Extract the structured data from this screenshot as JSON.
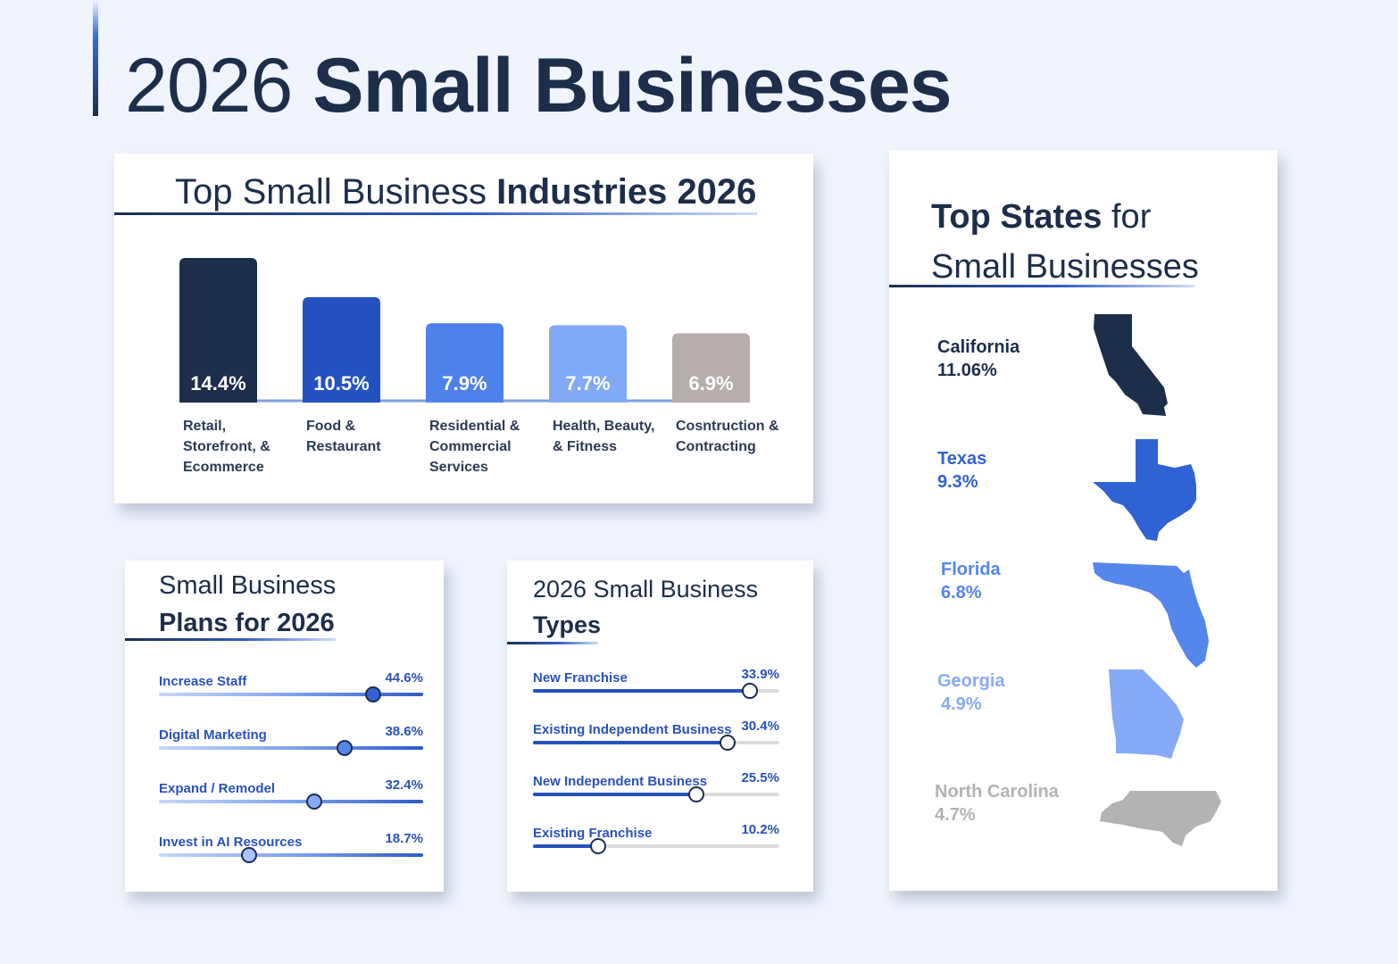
{
  "page": {
    "title_light": "2026",
    "title_bold": "Small Businesses"
  },
  "industries": {
    "title_light": "Top Small Business",
    "title_bold": "Industries 2026"
  },
  "plans": {
    "title_line1": "Small Business",
    "title_line2": "Plans for 2026",
    "items": [
      {
        "label": "Increase Staff",
        "value": "44.6%"
      },
      {
        "label": "Digital Marketing",
        "value": "38.6%"
      },
      {
        "label": "Expand / Remodel",
        "value": "32.4%"
      },
      {
        "label": "Invest in AI Resources",
        "value": "18.7%"
      }
    ]
  },
  "types": {
    "title_line1": "2026 Small Business",
    "title_line2": "Types",
    "items": [
      {
        "label": "New Franchise",
        "value": "33.9%"
      },
      {
        "label": "Existing Independent Business",
        "value": "30.4%"
      },
      {
        "label": "New Independent Business",
        "value": "25.5%"
      },
      {
        "label": "Existing Franchise",
        "value": "10.2%"
      }
    ]
  },
  "states": {
    "title_bold": "Top States",
    "title_light": "for",
    "title_line2": "Small Businesses",
    "items": [
      {
        "name": "California",
        "value": "11.06%",
        "color": "#1c2e4a"
      },
      {
        "name": "Texas",
        "value": "9.3%",
        "color": "#2f62d3"
      },
      {
        "name": "Florida",
        "value": "6.8%",
        "color": "#5586ec"
      },
      {
        "name": "Georgia",
        "value": "4.9%",
        "color": "#86aaf6"
      },
      {
        "name": "North Carolina",
        "value": "4.7%",
        "color": "#b3b3b3"
      }
    ]
  },
  "chart_data": [
    {
      "type": "bar",
      "title": "Top Small Business Industries 2026",
      "categories": [
        "Retail,\nStorefront, &\nEcommerce",
        "Food &\nRestaurant",
        "Residential &\nCommercial\nServices",
        "Health, Beauty,\n& Fitness",
        "Cosntruction &\nContracting"
      ],
      "values": [
        14.4,
        10.5,
        7.9,
        7.7,
        6.9
      ],
      "value_labels": [
        "14.4%",
        "10.5%",
        "7.9%",
        "7.7%",
        "6.9%"
      ],
      "colors": [
        "#1c2e4a",
        "#2352c0",
        "#4f82e8",
        "#82a9f4",
        "#b6adac"
      ],
      "ylim": [
        0,
        16
      ],
      "grid": false
    },
    {
      "type": "bar",
      "title": "Small Business Plans for 2026",
      "categories": [
        "Increase Staff",
        "Digital Marketing",
        "Expand / Remodel",
        "Invest in AI Resources"
      ],
      "values": [
        44.6,
        38.6,
        32.4,
        18.7
      ],
      "knob_colors": [
        "#2f62d3",
        "#5586ec",
        "#86aaf6",
        "#a9c4fa"
      ],
      "xlim": [
        0,
        55
      ]
    },
    {
      "type": "bar",
      "title": "2026 Small Business Types",
      "categories": [
        "New Franchise",
        "Existing Independent Business",
        "New Independent Business",
        "Existing Franchise"
      ],
      "values": [
        33.9,
        30.4,
        25.5,
        10.2
      ],
      "xlim": [
        0,
        38.5
      ]
    }
  ]
}
